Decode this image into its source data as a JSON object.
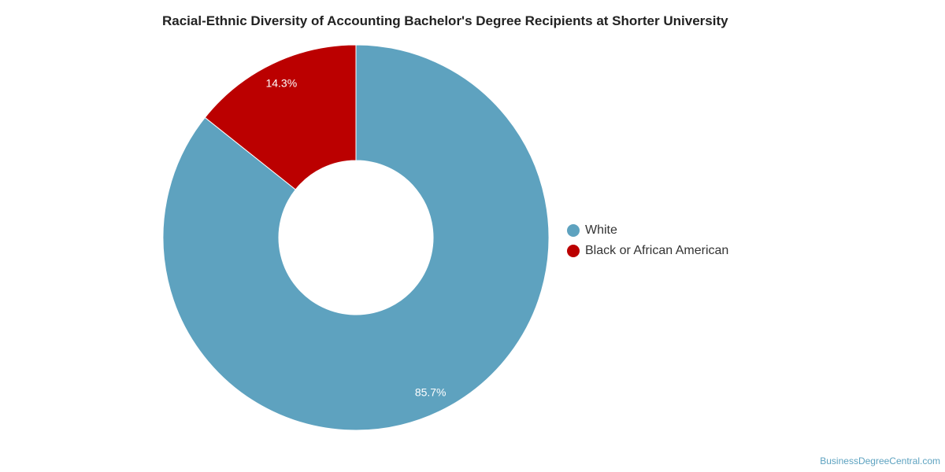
{
  "chart_data": {
    "type": "pie",
    "title": "Racial-Ethnic Diversity of Accounting Bachelor's Degree Recipients at Shorter University",
    "categories": [
      "White",
      "Black or African American"
    ],
    "values": [
      85.7,
      14.3
    ],
    "data_labels": [
      "85.7%",
      "14.3%"
    ],
    "colors": [
      "#5ea2bf",
      "#bb0000"
    ],
    "donut": true,
    "legend_position": "right"
  },
  "watermark": "BusinessDegreeCentral.com"
}
